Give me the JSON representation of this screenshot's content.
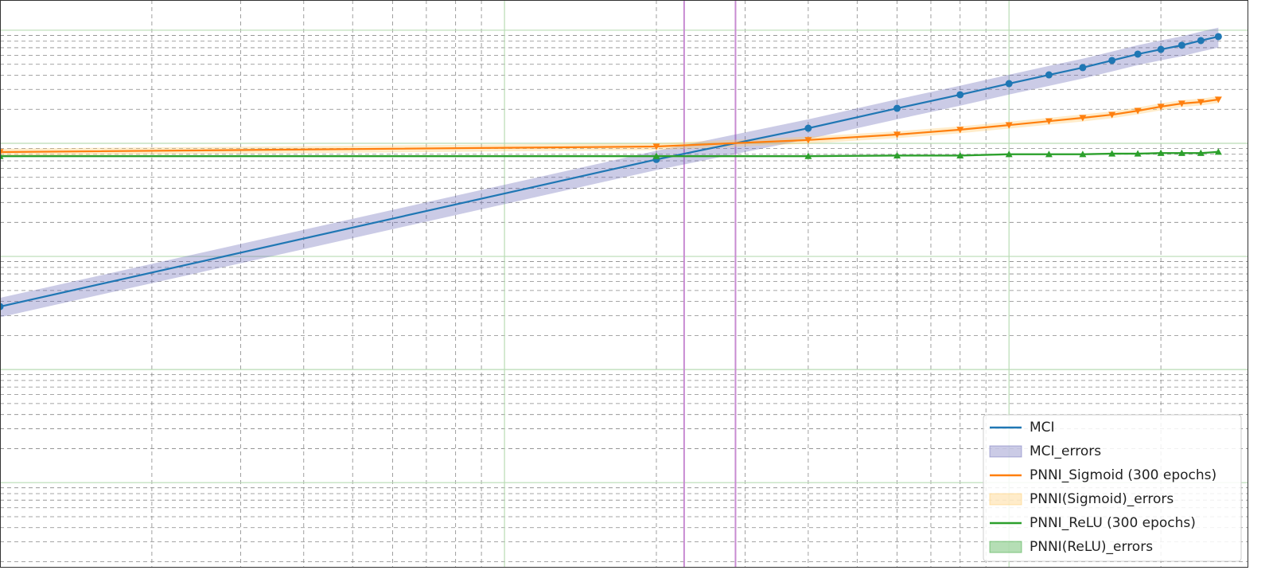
{
  "chart_data": {
    "type": "line",
    "log_x": true,
    "log_y": true,
    "grid": true,
    "minor_grid": true,
    "legend": "lower right",
    "xlim": [
      1,
      297
    ],
    "ylim": [
      0.00018,
      18.5
    ],
    "xticks": [
      1,
      10,
      100
    ],
    "yticks": [
      0.001,
      0.01,
      0.1,
      1,
      10
    ],
    "x": [
      1,
      20,
      40,
      60,
      80,
      100,
      120,
      140,
      160,
      180,
      200,
      220,
      240,
      260
    ],
    "vlines": [
      {
        "value": 22.7,
        "color": "#c88bd2"
      },
      {
        "value": 28.7,
        "color": "#c88bd2"
      }
    ],
    "series": [
      {
        "name": "MCI",
        "color": "#1f77b4",
        "marker": "circle",
        "values": [
          0.036,
          0.72,
          1.36,
          2.04,
          2.69,
          3.37,
          4.03,
          4.67,
          5.4,
          6.15,
          6.77,
          7.36,
          8.1,
          8.78
        ],
        "band": {
          "name": "MCI_errors",
          "color": "#6a6ab8",
          "errors": [
            0.007,
            0.14,
            0.27,
            0.41,
            0.54,
            0.67,
            0.81,
            0.93,
            1.08,
            1.23,
            1.35,
            1.47,
            1.62,
            1.76
          ]
        }
      },
      {
        "name": "PNNI_Sigmoid (300 epochs)",
        "color": "#ff7f0e",
        "marker": "triangle-down",
        "values": [
          0.837,
          0.937,
          1.07,
          1.195,
          1.32,
          1.45,
          1.57,
          1.68,
          1.79,
          1.94,
          2.11,
          2.25,
          2.32,
          2.44
        ],
        "band": {
          "name": "PNNI(Sigmoid)_errors",
          "color": "#ffc966",
          "errors": [
            0.06,
            0.066,
            0.075,
            0.084,
            0.092,
            0.1,
            0.11,
            0.12,
            0.125,
            0.136,
            0.15,
            0.16,
            0.16,
            0.17
          ]
        }
      },
      {
        "name": "PNNI_ReLU (300 epochs)",
        "color": "#2ca02c",
        "marker": "triangle-up",
        "values": [
          0.77,
          0.77,
          0.77,
          0.78,
          0.78,
          0.8,
          0.8,
          0.8,
          0.81,
          0.81,
          0.82,
          0.82,
          0.82,
          0.84
        ],
        "band": {
          "name": "PNNI(ReLU)_errors",
          "color": "#2ca02c",
          "errors": [
            0.016,
            0.016,
            0.016,
            0.016,
            0.016,
            0.016,
            0.016,
            0.016,
            0.016,
            0.016,
            0.016,
            0.016,
            0.016,
            0.017
          ]
        }
      }
    ]
  }
}
